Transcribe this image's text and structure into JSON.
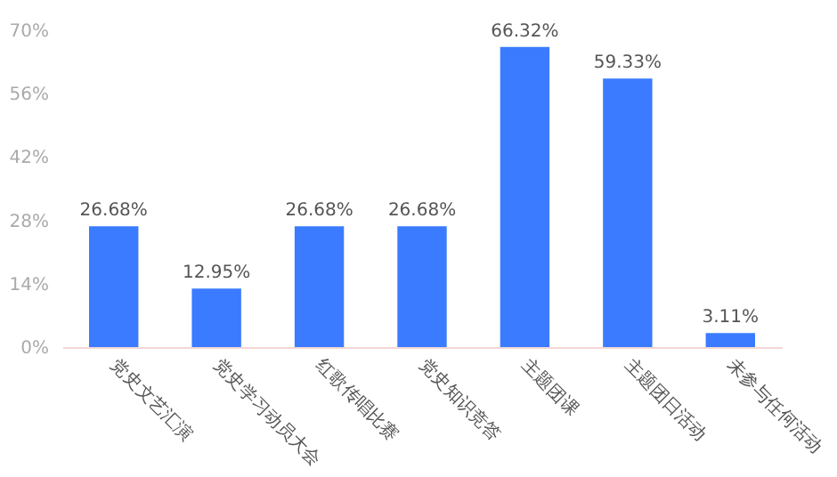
{
  "chart_data": {
    "type": "bar",
    "categories": [
      "党史文艺汇演",
      "党史学习动员大会",
      "红歌传唱比赛",
      "党史知识竞答",
      "主题团课",
      "主题团日活动",
      "未参与任何活动"
    ],
    "values": [
      26.68,
      12.95,
      26.68,
      26.68,
      66.32,
      59.33,
      3.11
    ],
    "value_labels": [
      "26.68%",
      "12.95%",
      "26.68%",
      "26.68%",
      "66.32%",
      "59.33%",
      "3.11%"
    ],
    "color": "#3a7bff",
    "ylim": [
      0,
      70
    ],
    "yticks": [
      {
        "value": 0,
        "label": "0%"
      },
      {
        "value": 14,
        "label": "14%"
      },
      {
        "value": 28,
        "label": "28%"
      },
      {
        "value": 42,
        "label": "42%"
      },
      {
        "value": 56,
        "label": "56%"
      },
      {
        "value": 70,
        "label": "70%"
      }
    ],
    "grid": false
  }
}
